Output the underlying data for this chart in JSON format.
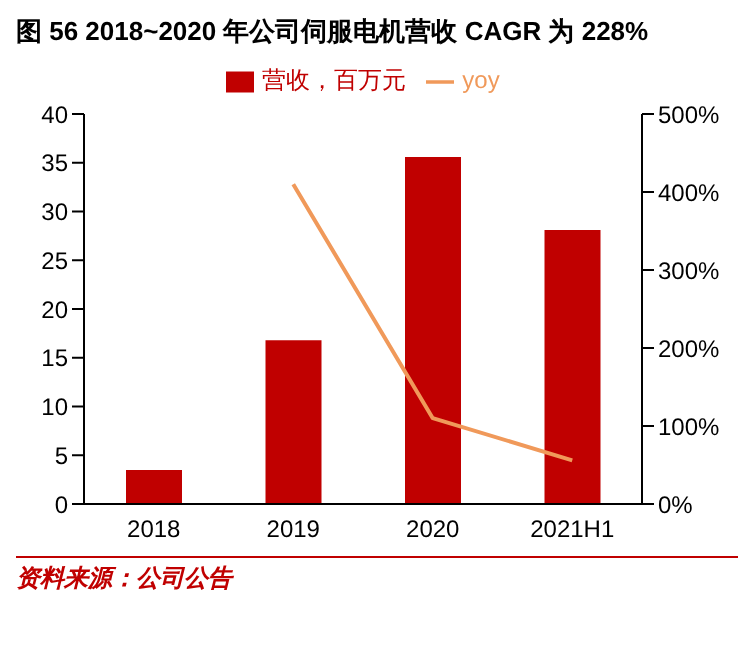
{
  "chart_data": {
    "type": "bar",
    "title": "图 56 2018~2020 年公司伺服电机营收 CAGR 为 228%",
    "categories": [
      "2018",
      "2019",
      "2020",
      "2021H1"
    ],
    "series": [
      {
        "name": "营收，百万元",
        "color": "#c00000",
        "values": [
          3.5,
          16.8,
          35.6,
          28.1
        ]
      },
      {
        "name": "yoy",
        "type": "line",
        "axis": "y2",
        "color": "#f0995a",
        "values": [
          null,
          410,
          110,
          56
        ]
      }
    ],
    "ylim": [
      0,
      40
    ],
    "yticks": [
      0,
      5,
      10,
      15,
      20,
      25,
      30,
      35,
      40
    ],
    "y2lim": [
      0,
      500
    ],
    "y2ticks": [
      {
        "value": 0,
        "label": "0%"
      },
      {
        "value": 100,
        "label": "100%"
      },
      {
        "value": 200,
        "label": "200%"
      },
      {
        "value": 300,
        "label": "300%"
      },
      {
        "value": 400,
        "label": "400%"
      },
      {
        "value": 500,
        "label": "500%"
      }
    ],
    "grid": false,
    "legend": "top",
    "marker": "none",
    "line_style": "solid",
    "annotations": [
      "资料来源：公司公告"
    ]
  }
}
